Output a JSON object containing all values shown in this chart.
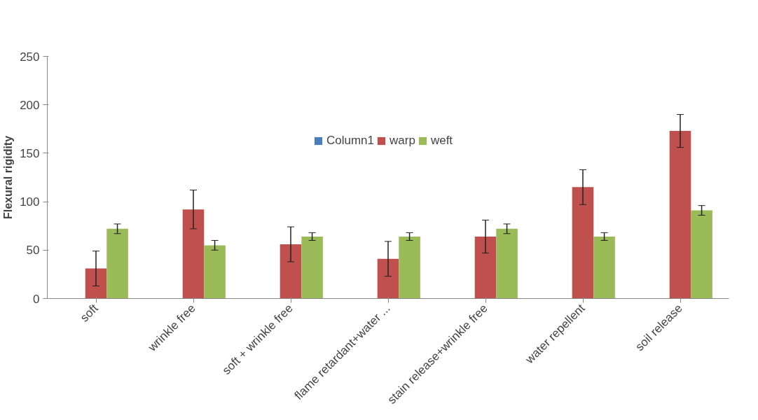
{
  "chart_data": {
    "type": "bar",
    "ylabel": "Flexural rigidity",
    "categories": [
      "soft",
      "wrinkle free",
      "soft + wrinkle free",
      "flame retardant+water ...",
      "stain release+wrinkle free",
      "water repellent",
      "soil release"
    ],
    "series": [
      {
        "name": "Column1",
        "color": "#4a7ebb",
        "values": [
          null,
          null,
          null,
          null,
          null,
          null,
          null
        ]
      },
      {
        "name": "warp",
        "color": "#c0504d",
        "values": [
          31,
          92,
          56,
          41,
          64,
          115,
          173
        ],
        "errors": [
          18,
          20,
          18,
          18,
          17,
          18,
          17
        ]
      },
      {
        "name": "weft",
        "color": "#9bbb59",
        "values": [
          72,
          55,
          64,
          64,
          72,
          64,
          91
        ],
        "errors": [
          5,
          5,
          4,
          4,
          5,
          4,
          5
        ]
      }
    ],
    "ylim": [
      0,
      250
    ],
    "yticks": [
      0,
      50,
      100,
      150,
      200,
      250
    ],
    "grid": false,
    "legend": "top"
  }
}
